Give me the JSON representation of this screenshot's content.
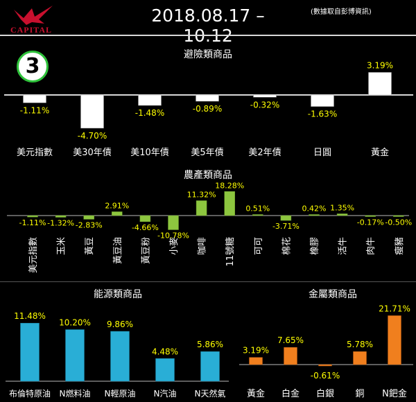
{
  "header": {
    "logo_text": "CAPITAL",
    "title": "2018.08.17 – 10.12",
    "source_note": "(數據取自彭博資訊)",
    "badge": "3"
  },
  "colors": {
    "safe_haven_bar": "#ffffff",
    "agri_bar": "#8dc63f",
    "energy_bar": "#29aed6",
    "metals_bar": "#f07f1e",
    "value_label": "#ffff00",
    "logo": "#c8102e",
    "badge_ring": "#2ec13a"
  },
  "chart_data": [
    {
      "type": "bar",
      "title": "避險類商品",
      "categories": [
        "美元指數",
        "美30年債",
        "美10年債",
        "美5年債",
        "美2年債",
        "日圓",
        "黃金"
      ],
      "values": [
        -1.11,
        -4.7,
        -1.48,
        -0.89,
        -0.32,
        -1.63,
        3.19
      ],
      "value_labels": [
        "-1.11%",
        "-4.70%",
        "-1.48%",
        "-0.89%",
        "-0.32%",
        "-1.63%",
        "3.19%"
      ]
    },
    {
      "type": "bar",
      "title": "農產類商品",
      "categories": [
        "美元指數",
        "玉米",
        "黃豆",
        "黃豆油",
        "黃豆粉",
        "小麥",
        "咖啡",
        "11號糖",
        "可可",
        "棉花",
        "橡膠",
        "活牛",
        "肉牛",
        "瘦豬"
      ],
      "values": [
        -1.11,
        -1.32,
        -2.83,
        2.91,
        -4.66,
        -10.78,
        11.32,
        18.28,
        0.51,
        -3.71,
        0.42,
        1.35,
        -0.17,
        -0.5
      ],
      "value_labels": [
        "-1.11%",
        "-1.32%",
        "-2.83%",
        "2.91%",
        "-4.66%",
        "-10.78%",
        "11.32%",
        "18.28%",
        "0.51%",
        "-3.71%",
        "0.42%",
        "1.35%",
        "-0.17%",
        "-0.50%"
      ]
    },
    {
      "type": "bar",
      "title": "能源類商品",
      "categories": [
        "布倫特原油",
        "N燃料油",
        "N輕原油",
        "N汽油",
        "N天然氣"
      ],
      "values": [
        11.48,
        10.2,
        9.86,
        4.48,
        5.86
      ],
      "value_labels": [
        "11.48%",
        "10.20%",
        "9.86%",
        "4.48%",
        "5.86%"
      ]
    },
    {
      "type": "bar",
      "title": "金屬類商品",
      "categories": [
        "黃金",
        "白金",
        "白銀",
        "銅",
        "N鈀金"
      ],
      "values": [
        3.19,
        7.65,
        -0.61,
        5.78,
        21.71
      ],
      "value_labels": [
        "3.19%",
        "7.65%",
        "-0.61%",
        "5.78%",
        "21.71%"
      ]
    }
  ]
}
